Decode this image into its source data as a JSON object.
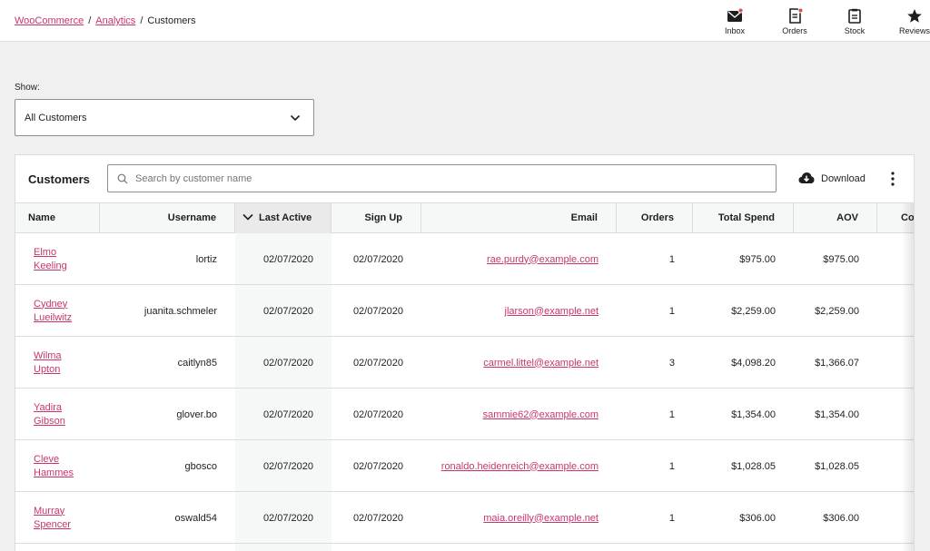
{
  "breadcrumb": {
    "woocommerce": "WooCommerce",
    "separator": "/",
    "analytics": "Analytics",
    "current": "Customers"
  },
  "toolbar": [
    {
      "label": "Inbox",
      "icon": "inbox-icon",
      "notification": true
    },
    {
      "label": "Orders",
      "icon": "orders-icon",
      "notification": true
    },
    {
      "label": "Stock",
      "icon": "stock-icon",
      "notification": false
    },
    {
      "label": "Reviews",
      "icon": "star-icon",
      "notification": false
    }
  ],
  "filter": {
    "label": "Show:",
    "selected": "All Customers"
  },
  "table_card": {
    "title": "Customers",
    "search_placeholder": "Search by customer name",
    "download_label": "Download",
    "columns": {
      "name": "Name",
      "username": "Username",
      "last_active": "Last Active",
      "sign_up": "Sign Up",
      "email": "Email",
      "orders": "Orders",
      "total_spend": "Total Spend",
      "aov": "AOV",
      "country": "Co"
    },
    "sorted_column": "last_active",
    "rows": [
      {
        "name": "Elmo Keeling",
        "username": "lortiz",
        "last_active": "02/07/2020",
        "sign_up": "02/07/2020",
        "email": "rae.purdy@example.com",
        "orders": "1",
        "total_spend": "$975.00",
        "aov": "$975.00"
      },
      {
        "name": "Cydney Lueilwitz",
        "username": "juanita.schmeler",
        "last_active": "02/07/2020",
        "sign_up": "02/07/2020",
        "email": "jlarson@example.net",
        "orders": "1",
        "total_spend": "$2,259.00",
        "aov": "$2,259.00"
      },
      {
        "name": "Wilma Upton",
        "username": "caitlyn85",
        "last_active": "02/07/2020",
        "sign_up": "02/07/2020",
        "email": "carmel.littel@example.net",
        "orders": "3",
        "total_spend": "$4,098.20",
        "aov": "$1,366.07"
      },
      {
        "name": "Yadira Gibson",
        "username": "glover.bo",
        "last_active": "02/07/2020",
        "sign_up": "02/07/2020",
        "email": "sammie62@example.com",
        "orders": "1",
        "total_spend": "$1,354.00",
        "aov": "$1,354.00"
      },
      {
        "name": "Cleve Hammes",
        "username": "gbosco",
        "last_active": "02/07/2020",
        "sign_up": "02/07/2020",
        "email": "ronaldo.heidenreich@example.com",
        "orders": "1",
        "total_spend": "$1,028.05",
        "aov": "$1,028.05"
      },
      {
        "name": "Murray Spencer",
        "username": "oswald54",
        "last_active": "02/07/2020",
        "sign_up": "02/07/2020",
        "email": "maia.oreilly@example.net",
        "orders": "1",
        "total_spend": "$306.00",
        "aov": "$306.00"
      }
    ]
  },
  "colors": {
    "link": "#c9356e",
    "notification": "#d94f4f",
    "header_bg": "#f6f7f7",
    "page_bg": "#f0f0f1"
  }
}
